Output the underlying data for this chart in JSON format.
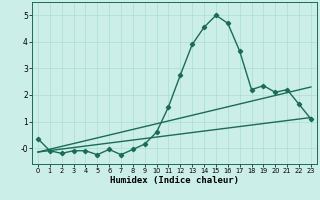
{
  "xlabel": "Humidex (Indice chaleur)",
  "background_color": "#cceee8",
  "grid_color": "#aaddcc",
  "line_color": "#1a6b5a",
  "xlim": [
    -0.5,
    23.5
  ],
  "ylim": [
    -0.6,
    5.5
  ],
  "yticks": [
    0,
    1,
    2,
    3,
    4,
    5
  ],
  "ytick_labels": [
    "-0",
    "1",
    "2",
    "3",
    "4",
    "5"
  ],
  "xticks": [
    0,
    1,
    2,
    3,
    4,
    5,
    6,
    7,
    8,
    9,
    10,
    11,
    12,
    13,
    14,
    15,
    16,
    17,
    18,
    19,
    20,
    21,
    22,
    23
  ],
  "series1_x": [
    0,
    1,
    2,
    3,
    4,
    5,
    6,
    7,
    8,
    9,
    10,
    11,
    12,
    13,
    14,
    15,
    16,
    17,
    18,
    19,
    20,
    21,
    22,
    23
  ],
  "series1_y": [
    0.35,
    -0.1,
    -0.2,
    -0.1,
    -0.1,
    -0.25,
    -0.05,
    -0.25,
    -0.05,
    0.15,
    0.6,
    1.55,
    2.75,
    3.9,
    4.55,
    5.0,
    4.7,
    3.65,
    2.2,
    2.35,
    2.1,
    2.2,
    1.65,
    1.1
  ],
  "series2_x": [
    0,
    23
  ],
  "series2_y": [
    -0.15,
    1.15
  ],
  "series3_x": [
    0,
    23
  ],
  "series3_y": [
    -0.15,
    2.3
  ],
  "marker": "D",
  "markersize": 2.2,
  "linewidth": 1.0
}
